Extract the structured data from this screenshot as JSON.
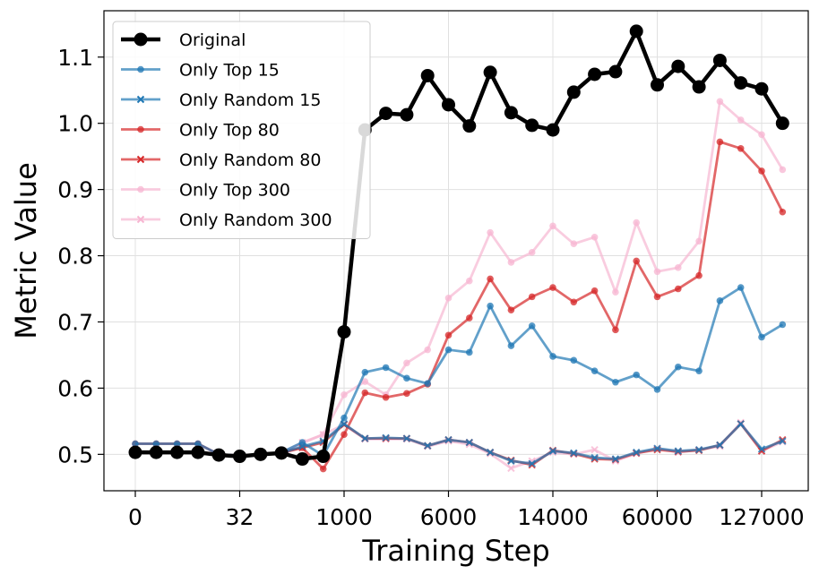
{
  "chart_data": {
    "type": "line",
    "xlabel": "Training Step",
    "ylabel": "Metric Value",
    "x_tick_labels": [
      "0",
      "32",
      "1000",
      "6000",
      "14000",
      "60000",
      "127000"
    ],
    "y_ticks": [
      0.5,
      0.6,
      0.7,
      0.8,
      0.9,
      1.0,
      1.1
    ],
    "y_tick_labels": [
      "0.5",
      "0.6",
      "0.7",
      "0.8",
      "0.9",
      "1.0",
      "1.1"
    ],
    "ylim": [
      0.445,
      1.17
    ],
    "grid": true,
    "legend_position": "top-left",
    "series": [
      {
        "name": "Original",
        "color": "#000000",
        "marker": "circle",
        "values": [
          0.503,
          0.503,
          0.503,
          0.503,
          0.499,
          0.497,
          0.5,
          0.502,
          0.493,
          0.497,
          0.685,
          0.99,
          1.015,
          1.013,
          1.072,
          1.028,
          0.996,
          1.077,
          1.016,
          0.997,
          0.99,
          1.047,
          1.074,
          1.078,
          1.139,
          1.058,
          1.086,
          1.055,
          1.095,
          1.061,
          1.052,
          1.0
        ]
      },
      {
        "name": "Only Top 15",
        "color": "#1f77b4",
        "marker": "circle",
        "values": [
          0.516,
          0.516,
          0.516,
          0.516,
          0.5,
          0.498,
          0.5,
          0.503,
          0.518,
          0.498,
          0.555,
          0.624,
          0.631,
          0.615,
          0.607,
          0.658,
          0.654,
          0.724,
          0.664,
          0.694,
          0.648,
          0.642,
          0.626,
          0.609,
          0.62,
          0.598,
          0.632,
          0.626,
          0.732,
          0.752,
          0.677,
          0.696
        ]
      },
      {
        "name": "Only Random 15",
        "color": "#1f77b4",
        "marker": "x",
        "values": [
          0.503,
          0.503,
          0.503,
          0.503,
          0.5,
          0.498,
          0.5,
          0.502,
          0.512,
          0.52,
          0.546,
          0.524,
          0.525,
          0.524,
          0.513,
          0.522,
          0.518,
          0.503,
          0.49,
          0.486,
          0.505,
          0.502,
          0.495,
          0.493,
          0.503,
          0.509,
          0.505,
          0.507,
          0.514,
          0.546,
          0.508,
          0.52
        ]
      },
      {
        "name": "Only Top 80",
        "color": "#d62728",
        "marker": "circle",
        "values": [
          0.516,
          0.516,
          0.516,
          0.516,
          0.5,
          0.498,
          0.5,
          0.503,
          0.51,
          0.478,
          0.53,
          0.593,
          0.586,
          0.592,
          0.606,
          0.68,
          0.706,
          0.765,
          0.718,
          0.738,
          0.752,
          0.73,
          0.747,
          0.688,
          0.792,
          0.738,
          0.75,
          0.77,
          0.972,
          0.962,
          0.928,
          0.866
        ]
      },
      {
        "name": "Only Random 80",
        "color": "#d62728",
        "marker": "x",
        "values": [
          0.503,
          0.503,
          0.503,
          0.503,
          0.5,
          0.498,
          0.5,
          0.502,
          0.51,
          0.518,
          0.545,
          0.524,
          0.524,
          0.524,
          0.513,
          0.522,
          0.518,
          0.503,
          0.491,
          0.484,
          0.506,
          0.501,
          0.493,
          0.492,
          0.502,
          0.507,
          0.504,
          0.506,
          0.514,
          0.546,
          0.505,
          0.522
        ]
      },
      {
        "name": "Only Top 300",
        "color": "#f7b6d2",
        "marker": "circle",
        "values": [
          0.516,
          0.516,
          0.516,
          0.516,
          0.5,
          0.498,
          0.5,
          0.503,
          0.517,
          0.53,
          0.59,
          0.61,
          0.59,
          0.638,
          0.658,
          0.736,
          0.762,
          0.835,
          0.79,
          0.805,
          0.845,
          0.818,
          0.828,
          0.745,
          0.85,
          0.776,
          0.782,
          0.822,
          1.033,
          1.005,
          0.983,
          0.93
        ]
      },
      {
        "name": "Only Random 300",
        "color": "#f7b6d2",
        "marker": "x",
        "values": [
          0.503,
          0.503,
          0.503,
          0.503,
          0.5,
          0.498,
          0.5,
          0.502,
          0.518,
          0.53,
          0.545,
          0.523,
          0.523,
          0.523,
          0.512,
          0.52,
          0.515,
          0.501,
          0.479,
          0.49,
          0.503,
          0.5,
          0.507,
          0.49,
          0.501,
          0.509,
          0.503,
          0.507,
          0.512,
          0.548,
          0.505,
          0.519
        ]
      }
    ]
  }
}
